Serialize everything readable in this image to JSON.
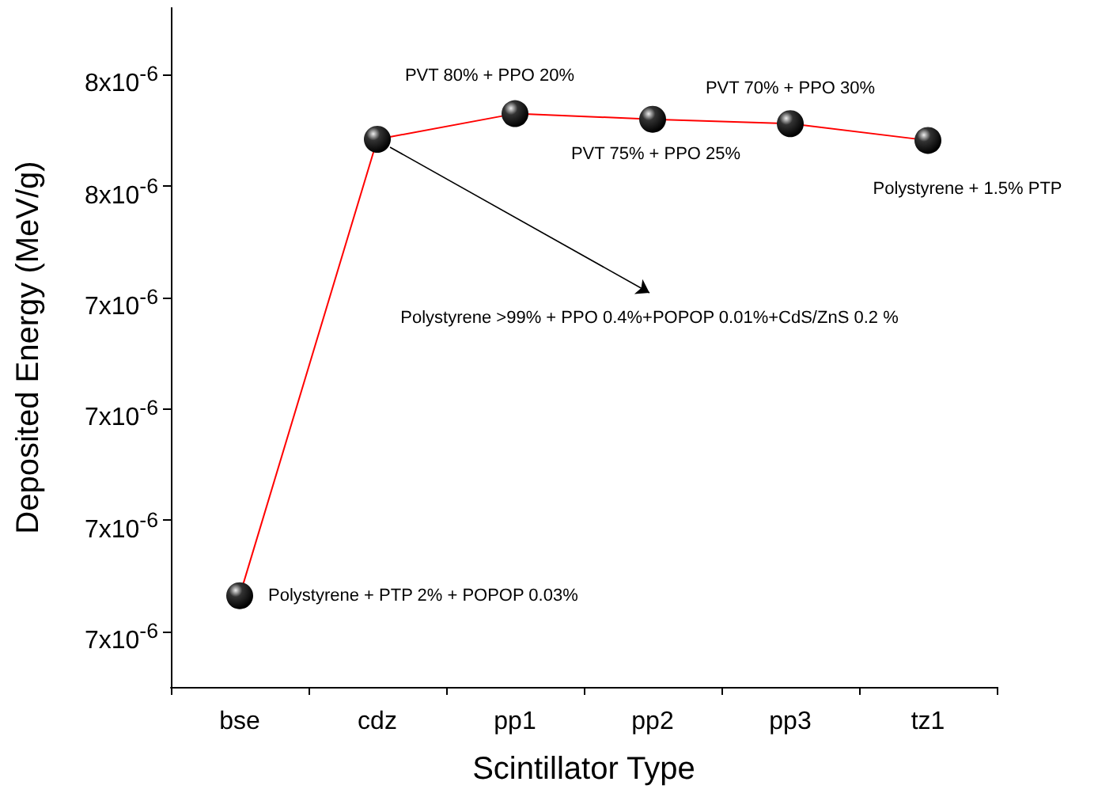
{
  "chart_data": {
    "type": "line",
    "xlabel": "Scintillator Type",
    "ylabel": "Deposited Energy (MeV/g)",
    "categories": [
      "bse",
      "cdz",
      "pp1",
      "pp2",
      "pp3",
      "tz1"
    ],
    "series": [
      {
        "color": "#ff0000",
        "values": [
          7.132e-06,
          7.542e-06,
          7.565e-06,
          7.56e-06,
          7.556e-06,
          7.541e-06
        ]
      }
    ],
    "ylim": [
      7.05e-06,
      7.66e-06
    ],
    "yticks": [
      {
        "value": 7.1e-06,
        "label": "7x10$^{-6}$"
      },
      {
        "value": 7.2e-06,
        "label": "7x10$^{-6}$"
      },
      {
        "value": 7.3e-06,
        "label": "7x10$^{-6}$"
      },
      {
        "value": 7.4e-06,
        "label": "7x10$^{-6}$"
      },
      {
        "value": 7.5e-06,
        "label": "8x10$^{-6}$"
      },
      {
        "value": 7.6e-06,
        "label": "8x10$^{-6}$"
      }
    ],
    "annotations": [
      {
        "text": "Polystyrene + PTP 2% + POPOP 0.03%",
        "x": "bse",
        "y": 7.132e-06
      },
      "Polystyrene >99% + PPO 0.4%+POPOP 0.01%+CdS/ZnS 0.2 %",
      {
        "text": "PVT 80% + PPO 20%",
        "x": "pp1",
        "y": 7.565e-06
      },
      {
        "text": "PVT 75% + PPO 25%",
        "x": "pp2",
        "y": 7.56e-06
      },
      {
        "text": "PVT 70% + PPO 30%",
        "x": "pp3",
        "y": 7.556e-06
      },
      {
        "text": "Polystyrene + 1.5% PTP",
        "x": "tz1",
        "y": 7.541e-06
      }
    ],
    "marker": "circle"
  }
}
